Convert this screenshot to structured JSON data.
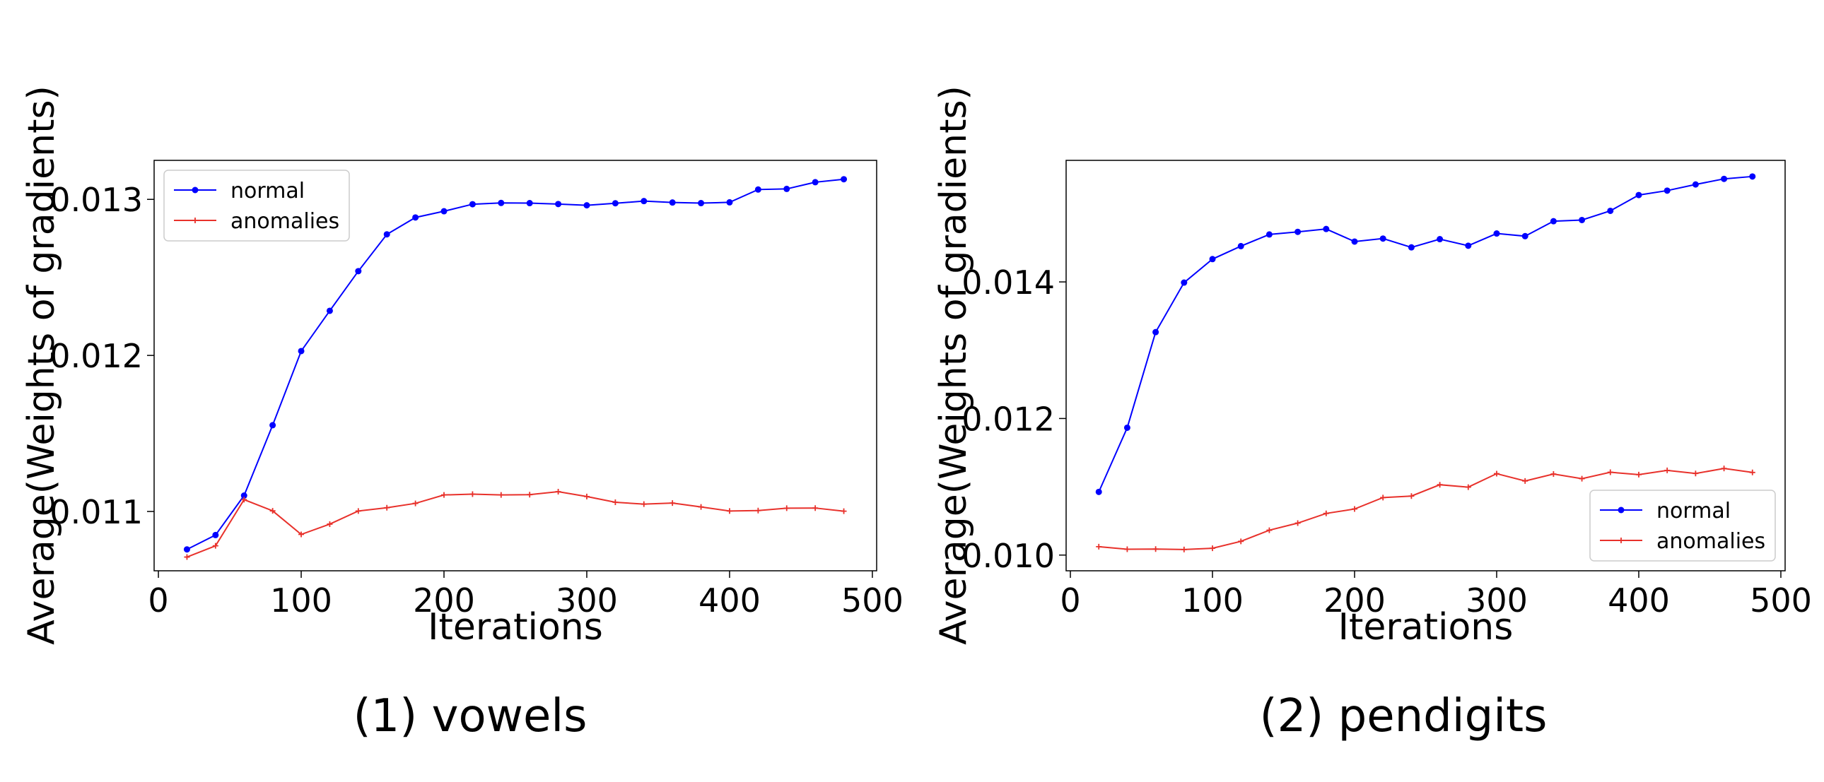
{
  "chart_data": [
    {
      "type": "line",
      "caption": "(1) vowels",
      "xlabel": "Iterations",
      "ylabel": "Average(Weights of gradients)",
      "xlim": [
        -3,
        503
      ],
      "ylim": [
        0.01062,
        0.01325
      ],
      "xticks": [
        0,
        100,
        200,
        300,
        400,
        500
      ],
      "yticks": [
        0.011,
        0.012,
        0.013
      ],
      "ytick_labels": [
        "0.011",
        "0.012",
        "0.013"
      ],
      "legend_position": "upper-left",
      "series": [
        {
          "name": "normal",
          "color": "#0000ff",
          "marker": "dot",
          "x": [
            20,
            40,
            60,
            80,
            100,
            120,
            140,
            160,
            180,
            200,
            220,
            240,
            260,
            280,
            300,
            320,
            340,
            360,
            380,
            400,
            420,
            440,
            460,
            480
          ],
          "y": [
            0.010757,
            0.010849,
            0.011102,
            0.011553,
            0.012028,
            0.012286,
            0.01254,
            0.012776,
            0.012884,
            0.012924,
            0.012969,
            0.012977,
            0.012976,
            0.01297,
            0.012962,
            0.012975,
            0.012989,
            0.01298,
            0.012976,
            0.012981,
            0.013063,
            0.013067,
            0.01311,
            0.013129
          ]
        },
        {
          "name": "anomalies",
          "color": "#e8312b",
          "marker": "plus",
          "x": [
            20,
            40,
            60,
            80,
            100,
            120,
            140,
            160,
            180,
            200,
            220,
            240,
            260,
            280,
            300,
            320,
            340,
            360,
            380,
            400,
            420,
            440,
            460,
            480
          ],
          "y": [
            0.010708,
            0.01078,
            0.011076,
            0.011004,
            0.010853,
            0.010919,
            0.011003,
            0.011024,
            0.011052,
            0.011106,
            0.011111,
            0.011106,
            0.011108,
            0.011127,
            0.011096,
            0.011059,
            0.011047,
            0.011054,
            0.011029,
            0.011003,
            0.011006,
            0.011021,
            0.011022,
            0.011002
          ]
        }
      ]
    },
    {
      "type": "line",
      "caption": "(2) pendigits",
      "xlabel": "Iterations",
      "ylabel": "Average(Weights of gradients)",
      "xlim": [
        -3,
        503
      ],
      "ylim": [
        0.00977,
        0.01578
      ],
      "xticks": [
        0,
        100,
        200,
        300,
        400,
        500
      ],
      "yticks": [
        0.01,
        0.012,
        0.014
      ],
      "ytick_labels": [
        "0.010",
        "0.012",
        "0.014"
      ],
      "legend_position": "lower-right",
      "series": [
        {
          "name": "normal",
          "color": "#0000ff",
          "marker": "dot",
          "x": [
            20,
            40,
            60,
            80,
            100,
            120,
            140,
            160,
            180,
            200,
            220,
            240,
            260,
            280,
            300,
            320,
            340,
            360,
            380,
            400,
            420,
            440,
            460,
            480
          ],
          "y": [
            0.010925,
            0.011865,
            0.013265,
            0.01399,
            0.014334,
            0.014524,
            0.014695,
            0.014733,
            0.014775,
            0.014591,
            0.014635,
            0.014506,
            0.014626,
            0.01453,
            0.014709,
            0.01467,
            0.014889,
            0.014906,
            0.015041,
            0.015272,
            0.015337,
            0.015427,
            0.015509,
            0.015544
          ]
        },
        {
          "name": "anomalies",
          "color": "#e8312b",
          "marker": "plus",
          "x": [
            20,
            40,
            60,
            80,
            100,
            120,
            140,
            160,
            180,
            200,
            220,
            240,
            260,
            280,
            300,
            320,
            340,
            360,
            380,
            400,
            420,
            440,
            460,
            480
          ],
          "y": [
            0.010123,
            0.010085,
            0.010088,
            0.010081,
            0.0101,
            0.010201,
            0.010364,
            0.010468,
            0.01061,
            0.010675,
            0.010842,
            0.010864,
            0.01103,
            0.010995,
            0.011192,
            0.011085,
            0.011187,
            0.011119,
            0.011213,
            0.011178,
            0.01124,
            0.011195,
            0.011268,
            0.01121
          ]
        }
      ]
    }
  ]
}
